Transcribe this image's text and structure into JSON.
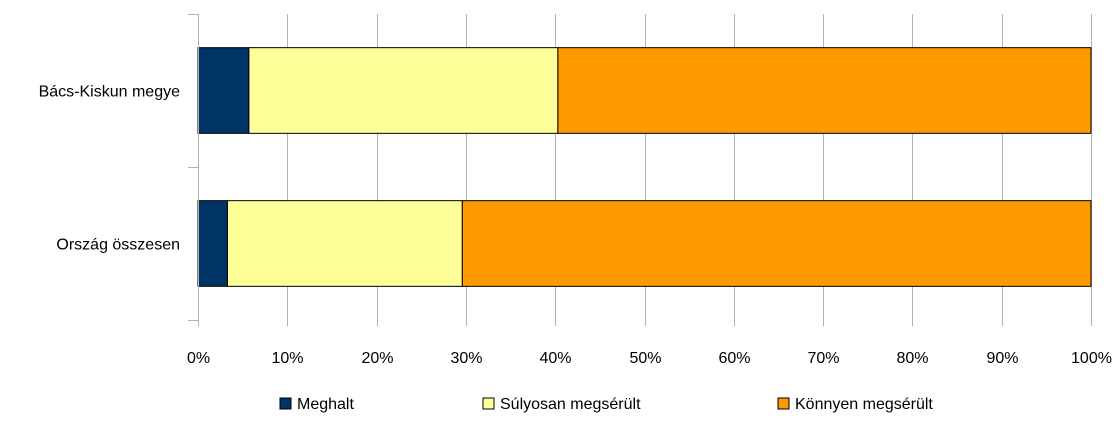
{
  "chart_data": {
    "type": "bar",
    "orientation": "horizontal",
    "stacked": "percent",
    "categories": [
      "Bács-Kiskun megye",
      "Ország összesen"
    ],
    "series": [
      {
        "name": "Meghalt",
        "values": [
          5.7,
          3.3
        ],
        "color": "#003366"
      },
      {
        "name": "Súlyosan megsérült",
        "values": [
          34.6,
          26.3
        ],
        "color": "#ffff99"
      },
      {
        "name": "Könnyen megsérült",
        "values": [
          59.7,
          70.4
        ],
        "color": "#ff9900"
      }
    ],
    "x_ticks": [
      "0%",
      "10%",
      "20%",
      "30%",
      "40%",
      "50%",
      "60%",
      "70%",
      "80%",
      "90%",
      "100%"
    ],
    "xlim": [
      0,
      100
    ],
    "grid": "vertical",
    "legend_position": "bottom"
  }
}
